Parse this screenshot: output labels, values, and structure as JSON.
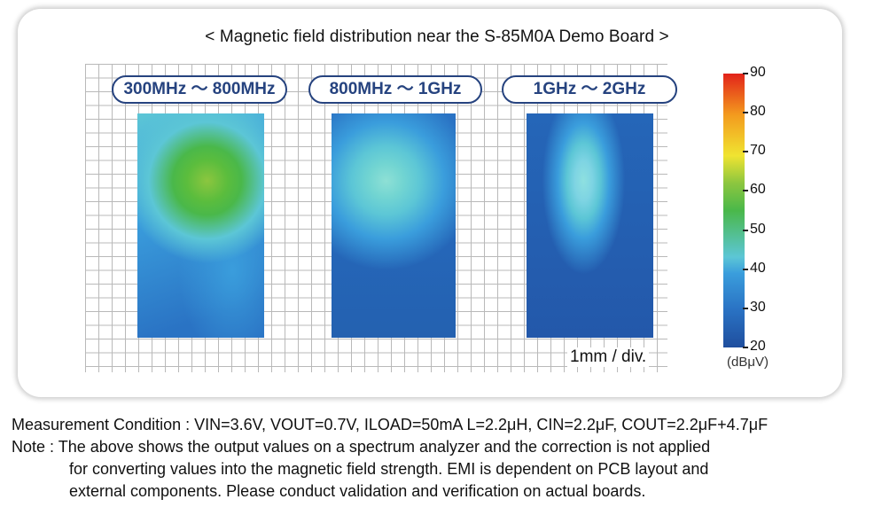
{
  "chart_data": {
    "type": "heatmap",
    "title": "< Magnetic field distribution near the S-85M0A Demo Board >",
    "panels": [
      {
        "label": "300MHz ～ 800MHz",
        "peak_value": 55,
        "floor_value": 32
      },
      {
        "label": "800MHz ～ 1GHz",
        "peak_value": 42,
        "floor_value": 26
      },
      {
        "label": "1GHz ～ 2GHz",
        "peak_value": 40,
        "floor_value": 23
      }
    ],
    "scale_label": "1mm / div.",
    "colorbar": {
      "range": [
        20,
        90
      ],
      "ticks": [
        "90",
        "80",
        "70",
        "60",
        "50",
        "40",
        "30",
        "20"
      ],
      "unit": "(dBμV)"
    }
  },
  "footer": {
    "condition": "Measurement Condition : VIN=3.6V, VOUT=0.7V, ILOAD=50mA  L=2.2μH, CIN=2.2μF, COUT=2.2μF+4.7μF",
    "note_line1": "Note : The above shows the output values on a spectrum analyzer and the correction is not applied",
    "note_line2": "for converting values into the magnetic field strength. EMI is dependent on PCB layout and",
    "note_line3": "external components. Please conduct validation and verification on actual boards."
  },
  "colors": {
    "low": "#1f4e9e",
    "mid": "#3a9ddc",
    "cyan": "#5cc6d6",
    "green": "#4ab84a",
    "yellow": "#f0e431",
    "high": "#e2231a"
  }
}
